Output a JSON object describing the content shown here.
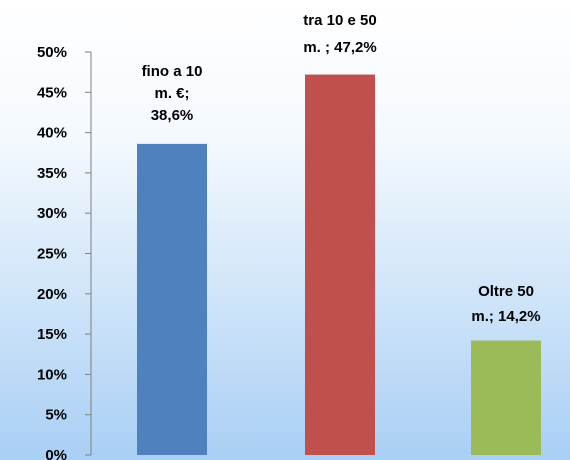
{
  "chart_data": {
    "type": "bar",
    "categories": [
      "fino a 10 m. €",
      "tra 10 e 50 m.",
      "Oltre 50 m."
    ],
    "values": [
      38.6,
      47.2,
      14.2
    ],
    "title": "",
    "xlabel": "",
    "ylabel": "",
    "ylim": [
      0,
      50
    ],
    "y_ticks": [
      0,
      5,
      10,
      15,
      20,
      25,
      30,
      35,
      40,
      45,
      50
    ],
    "y_tick_labels": [
      "0%",
      "5%",
      "10%",
      "15%",
      "20%",
      "25%",
      "30%",
      "35%",
      "40%",
      "45%",
      "50%"
    ],
    "data_labels": [
      [
        "fino a 10",
        "m. €;",
        "38,6%"
      ],
      [
        "tra 10 e 50",
        "m.  ; 47,2%"
      ],
      [
        "Oltre 50",
        "m.; 14,2%"
      ]
    ],
    "colors": [
      "#4f81bd",
      "#c0504d",
      "#9bbb59"
    ],
    "grid": false,
    "legend": "none"
  }
}
